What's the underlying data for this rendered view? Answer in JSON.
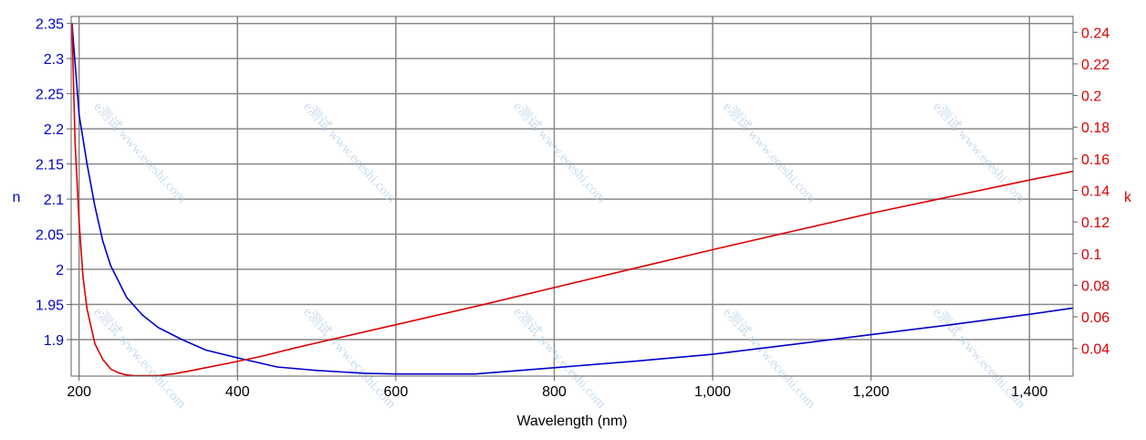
{
  "chart_data": {
    "type": "line",
    "title": "",
    "xlabel": "Wavelength (nm)",
    "ylabel_left": "n",
    "ylabel_right": "k",
    "xlim": [
      190,
      1455
    ],
    "ylim_left": [
      1.848,
      2.36
    ],
    "ylim_right": [
      0.0225,
      0.25
    ],
    "x_ticks": [
      200,
      400,
      600,
      800,
      1000,
      1200,
      1400
    ],
    "x_tick_labels": [
      "200",
      "400",
      "600",
      "800",
      "1,000",
      "1,200",
      "1,400"
    ],
    "y_left_ticks": [
      1.9,
      1.95,
      2.0,
      2.05,
      2.1,
      2.15,
      2.2,
      2.25,
      2.3,
      2.35
    ],
    "y_left_tick_labels": [
      "1.9",
      "1.95",
      "2",
      "2.05",
      "2.1",
      "2.15",
      "2.2",
      "2.25",
      "2.3",
      "2.35"
    ],
    "y_right_ticks": [
      0.04,
      0.06,
      0.08,
      0.1,
      0.12,
      0.14,
      0.16,
      0.18,
      0.2,
      0.22,
      0.24
    ],
    "y_right_tick_labels": [
      "0.04",
      "0.06",
      "0.08",
      "0.1",
      "0.12",
      "0.14",
      "0.16",
      "0.18",
      "0.2",
      "0.22",
      "0.24"
    ],
    "grid": true,
    "series": [
      {
        "axis": "left",
        "color": "#0000cc",
        "x": [
          191,
          200,
          210,
          220,
          230,
          240,
          260,
          280,
          300,
          330,
          360,
          400,
          450,
          500,
          560,
          600,
          700,
          800,
          900,
          1000,
          1100,
          1200,
          1300,
          1400,
          1455
        ],
        "y": [
          2.35,
          2.22,
          2.15,
          2.09,
          2.04,
          2.005,
          1.96,
          1.935,
          1.917,
          1.9,
          1.885,
          1.874,
          1.861,
          1.856,
          1.852,
          1.851,
          1.851,
          1.86,
          1.869,
          1.879,
          1.893,
          1.907,
          1.921,
          1.936,
          1.945
        ]
      },
      {
        "axis": "right",
        "color": "#dd0000",
        "x": [
          191,
          195,
          200,
          205,
          210,
          220,
          230,
          240,
          250,
          260,
          270,
          280,
          300,
          320,
          340,
          360,
          380,
          400,
          430,
          470,
          500,
          600,
          700,
          800,
          900,
          1000,
          1100,
          1200,
          1300,
          1400,
          1455
        ],
        "y": [
          0.245,
          0.17,
          0.12,
          0.085,
          0.065,
          0.043,
          0.033,
          0.027,
          0.0245,
          0.0232,
          0.0228,
          0.0228,
          0.0228,
          0.024,
          0.0258,
          0.0278,
          0.0298,
          0.0318,
          0.035,
          0.04,
          0.0435,
          0.055,
          0.0665,
          0.0785,
          0.0905,
          0.1025,
          0.114,
          0.1255,
          0.136,
          0.1465,
          0.152
        ]
      }
    ],
    "watermark": "e测试 www.eceshi.com"
  }
}
